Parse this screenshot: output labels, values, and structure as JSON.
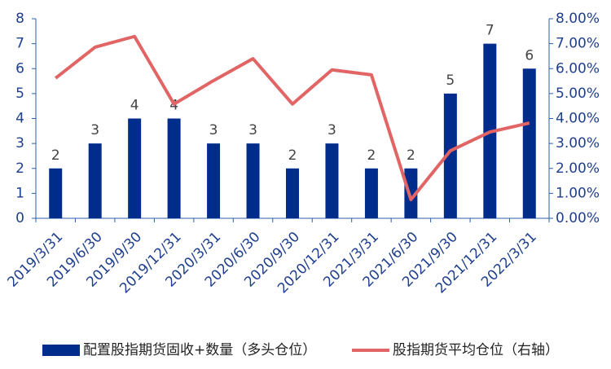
{
  "chart_data": {
    "type": "bar-line",
    "categories": [
      "2019/3/31",
      "2019/6/30",
      "2019/9/30",
      "2019/12/31",
      "2020/3/31",
      "2020/6/30",
      "2020/9/30",
      "2020/12/31",
      "2021/3/31",
      "2021/6/30",
      "2021/9/30",
      "2021/12/31",
      "2022/3/31"
    ],
    "series": [
      {
        "name": "配置股指期货固收+数量（多头仓位）",
        "type": "bar",
        "color": "#002d8c",
        "values": [
          2,
          3,
          4,
          4,
          3,
          3,
          2,
          3,
          2,
          2,
          5,
          7,
          6
        ]
      },
      {
        "name": "股指期货平均仓位（右轴）",
        "type": "line",
        "axis": "y2",
        "color": "#e26565",
        "values": [
          5.62,
          6.86,
          7.29,
          4.58,
          5.52,
          6.4,
          4.58,
          5.95,
          5.75,
          0.75,
          2.71,
          3.46,
          3.82
        ]
      }
    ],
    "ylim": [
      0,
      8
    ],
    "yticks": [
      0,
      1,
      2,
      3,
      4,
      5,
      6,
      7,
      8
    ],
    "y2lim": [
      0,
      8
    ],
    "y2ticks": [
      {
        "value": 0,
        "label": "0.00%"
      },
      {
        "value": 1,
        "label": "1.00%"
      },
      {
        "value": 2,
        "label": "2.00%"
      },
      {
        "value": 3,
        "label": "3.00%"
      },
      {
        "value": 4,
        "label": "4.00%"
      },
      {
        "value": 5,
        "label": "5.00%"
      },
      {
        "value": 6,
        "label": "6.00%"
      },
      {
        "value": 7,
        "label": "7.00%"
      },
      {
        "value": 8,
        "label": "8.00%"
      }
    ],
    "legend": "bottom"
  }
}
